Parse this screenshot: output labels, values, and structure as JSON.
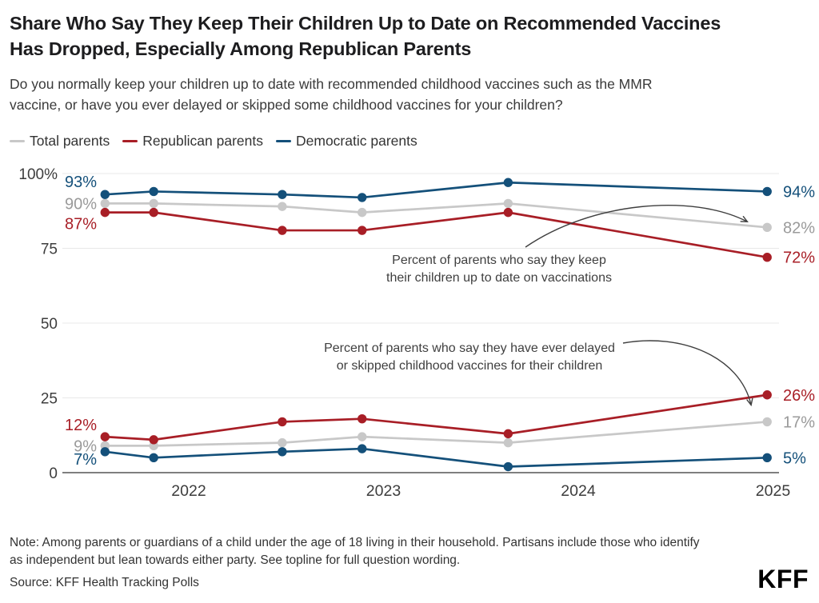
{
  "header": {
    "title_lines": [
      "Share Who Say They Keep Their Children Up to Date on Recommended Vaccines",
      "Has Dropped, Especially Among Republican Parents"
    ],
    "subtitle_lines": [
      "Do you normally keep your children up to date with recommended childhood vaccines such as the MMR",
      "vaccine, or have you ever delayed or skipped some childhood vaccines for your children?"
    ]
  },
  "legend": [
    {
      "label": "Total parents",
      "color": "#c8c8c8"
    },
    {
      "label": "Republican parents",
      "color": "#a81e26"
    },
    {
      "label": "Democratic parents",
      "color": "#14507a"
    }
  ],
  "colors": {
    "total": "#c8c8c8",
    "total_label": "#9a9a9a",
    "republican": "#a81e26",
    "democratic": "#14507a",
    "annotation": "#3f3f3f",
    "axis_text": "#3d3d3d",
    "grid": "#e8e8e8",
    "baseline": "#555555"
  },
  "chart_data": {
    "type": "line",
    "title": "Share who say they keep their children up to date on recommended vaccines",
    "x_years": [
      2021.57,
      2021.82,
      2022.48,
      2022.89,
      2023.64,
      2024.97
    ],
    "x_ticks": [
      "2022",
      "2023",
      "2024",
      "2025"
    ],
    "x_tick_values": [
      2022,
      2023,
      2024,
      2025
    ],
    "y_ticks": [
      "100%",
      "75",
      "50",
      "25",
      "0"
    ],
    "y_tick_values": [
      100,
      75,
      50,
      25,
      0
    ],
    "ylim": [
      0,
      100
    ],
    "grid": true,
    "legend_position": "top",
    "groups": [
      {
        "name": "up_to_date",
        "annotation_lines": [
          "Percent of parents who say they  keep",
          "their children up to date on vaccinations"
        ],
        "series": [
          {
            "name": "Total parents",
            "key": "total",
            "values": [
              90,
              90,
              89,
              87,
              90,
              82
            ],
            "start_label": "90%",
            "end_label": "82%"
          },
          {
            "name": "Republican parents",
            "key": "republican",
            "values": [
              87,
              87,
              81,
              81,
              87,
              72
            ],
            "start_label": "87%",
            "end_label": "72%"
          },
          {
            "name": "Democratic parents",
            "key": "democratic",
            "values": [
              93,
              94,
              93,
              92,
              97,
              94
            ],
            "start_label": "93%",
            "end_label": "94%"
          }
        ]
      },
      {
        "name": "delayed_skipped",
        "annotation_lines": [
          "Percent of parents who say they have ever delayed",
          "or skipped childhood vaccines for their children"
        ],
        "series": [
          {
            "name": "Total parents",
            "key": "total",
            "values": [
              9,
              9,
              10,
              12,
              10,
              17
            ],
            "start_label": "9%",
            "end_label": "17%"
          },
          {
            "name": "Republican parents",
            "key": "republican",
            "values": [
              12,
              11,
              17,
              18,
              13,
              26
            ],
            "start_label": "12%",
            "end_label": "26%"
          },
          {
            "name": "Democratic parents",
            "key": "democratic",
            "values": [
              7,
              5,
              7,
              8,
              2,
              5
            ],
            "start_label": "7%",
            "end_label": "5%"
          }
        ]
      }
    ]
  },
  "footer": {
    "note_lines": [
      "Note: Among parents or guardians of a child under the age of 18 living in their household. Partisans include those who identify",
      "as independent but lean towards either party. See topline for full question wording."
    ],
    "source": "Source: KFF Health Tracking Polls",
    "logo": "KFF"
  }
}
